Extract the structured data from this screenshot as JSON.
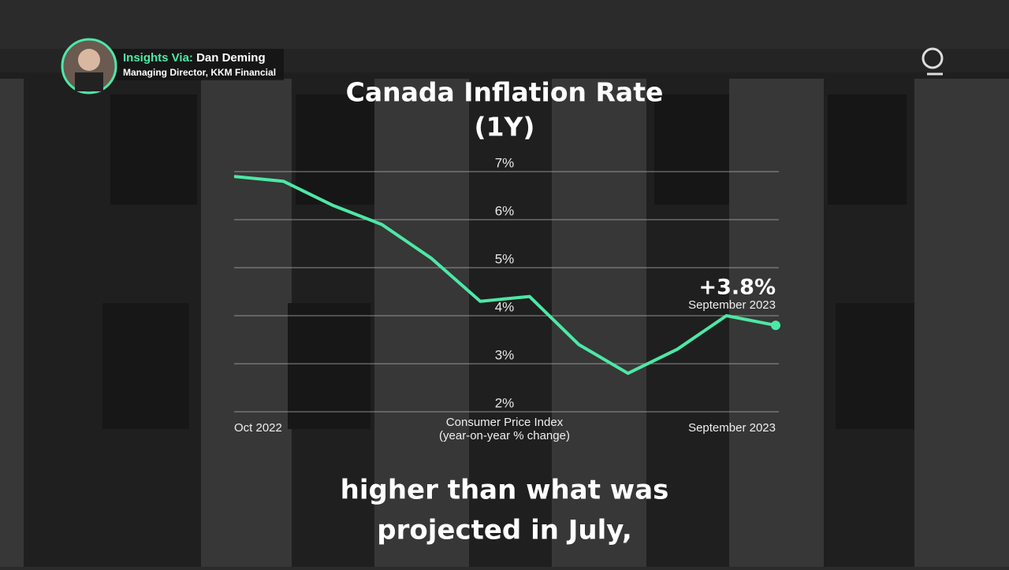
{
  "presenter": {
    "prefix": "Insights Via:",
    "name": "Dan Deming",
    "role": "Managing Director, KKM Financial"
  },
  "chart_data": {
    "type": "line",
    "title": [
      "Canada Inflation Rate",
      "(1Y)"
    ],
    "xlabel": [
      "Consumer Price Index",
      "(year-on-year % change)"
    ],
    "categories": [
      "Oct 2022",
      null,
      null,
      null,
      null,
      null,
      null,
      null,
      null,
      null,
      null,
      "September 2023"
    ],
    "values": [
      6.9,
      6.8,
      6.3,
      5.9,
      5.2,
      4.3,
      4.4,
      3.4,
      2.8,
      3.3,
      4.0,
      3.8
    ],
    "color": "#4de8a6",
    "ylim": [
      2,
      7
    ],
    "yticks": [
      {
        "value": 2,
        "label": "2%"
      },
      {
        "value": 3,
        "label": "3%"
      },
      {
        "value": 4,
        "label": "4%"
      },
      {
        "value": 5,
        "label": "5%"
      },
      {
        "value": 6,
        "label": "6%"
      },
      {
        "value": 7,
        "label": "7%"
      }
    ],
    "grid": true,
    "annotation": {
      "text": "+3.8%",
      "date": "September 2023"
    }
  },
  "caption": [
    "higher than what was",
    "projected in July,"
  ]
}
